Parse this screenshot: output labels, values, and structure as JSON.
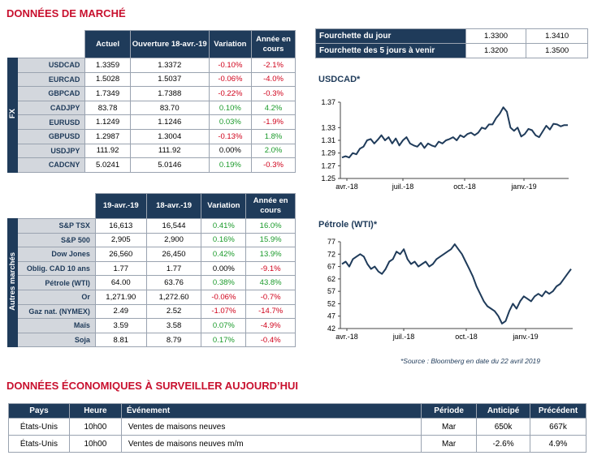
{
  "titles": {
    "market": "DONNÉES DE MARCHÉ",
    "econ": "DONNÉES ÉCONOMIQUES À SURVEILLER AUJOURD’HUI"
  },
  "fx": {
    "side": "FX",
    "headers": [
      "Actuel",
      "Ouverture 18-avr.-19",
      "Variation",
      "Année en cours"
    ],
    "rows": [
      {
        "name": "USDCAD",
        "cur": "1.3359",
        "open": "1.3372",
        "var": "-0.10%",
        "ytd": "-2.1%",
        "vs": "neg",
        "ys": "neg"
      },
      {
        "name": "EURCAD",
        "cur": "1.5028",
        "open": "1.5037",
        "var": "-0.06%",
        "ytd": "-4.0%",
        "vs": "neg",
        "ys": "neg"
      },
      {
        "name": "GBPCAD",
        "cur": "1.7349",
        "open": "1.7388",
        "var": "-0.22%",
        "ytd": "-0.3%",
        "vs": "neg",
        "ys": "neg"
      },
      {
        "name": "CADJPY",
        "cur": "83.78",
        "open": "83.70",
        "var": "0.10%",
        "ytd": "4.2%",
        "vs": "pos",
        "ys": "pos"
      },
      {
        "name": "EURUSD",
        "cur": "1.1249",
        "open": "1.1246",
        "var": "0.03%",
        "ytd": "-1.9%",
        "vs": "pos",
        "ys": "neg"
      },
      {
        "name": "GBPUSD",
        "cur": "1.2987",
        "open": "1.3004",
        "var": "-0.13%",
        "ytd": "1.8%",
        "vs": "neg",
        "ys": "pos"
      },
      {
        "name": "USDJPY",
        "cur": "111.92",
        "open": "111.92",
        "var": "0.00%",
        "ytd": "2.0%",
        "vs": "",
        "ys": "pos"
      },
      {
        "name": "CADCNY",
        "cur": "5.0241",
        "open": "5.0146",
        "var": "0.19%",
        "ytd": "-0.3%",
        "vs": "pos",
        "ys": "neg"
      }
    ]
  },
  "markets": {
    "side": "Autres marchés",
    "headers": [
      "19-avr.-19",
      "18-avr.-19",
      "Variation",
      "Année en cours"
    ],
    "rows": [
      {
        "name": "S&P TSX",
        "cur": "16,613",
        "open": "16,544",
        "var": "0.41%",
        "ytd": "16.0%",
        "vs": "pos",
        "ys": "pos"
      },
      {
        "name": "S&P 500",
        "cur": "2,905",
        "open": "2,900",
        "var": "0.16%",
        "ytd": "15.9%",
        "vs": "pos",
        "ys": "pos"
      },
      {
        "name": "Dow Jones",
        "cur": "26,560",
        "open": "26,450",
        "var": "0.42%",
        "ytd": "13.9%",
        "vs": "pos",
        "ys": "pos"
      },
      {
        "name": "Oblig. CAD 10 ans",
        "cur": "1.77",
        "open": "1.77",
        "var": "0.00%",
        "ytd": "-9.1%",
        "vs": "",
        "ys": "neg"
      },
      {
        "name": "Pétrole (WTI)",
        "cur": "64.00",
        "open": "63.76",
        "var": "0.38%",
        "ytd": "43.8%",
        "vs": "pos",
        "ys": "pos"
      },
      {
        "name": "Or",
        "cur": "1,271.90",
        "open": "1,272.60",
        "var": "-0.06%",
        "ytd": "-0.7%",
        "vs": "neg",
        "ys": "neg"
      },
      {
        "name": "Gaz nat. (NYMEX)",
        "cur": "2.49",
        "open": "2.52",
        "var": "-1.07%",
        "ytd": "-14.7%",
        "vs": "neg",
        "ys": "neg"
      },
      {
        "name": "Maïs",
        "cur": "3.59",
        "open": "3.58",
        "var": "0.07%",
        "ytd": "-4.9%",
        "vs": "pos",
        "ys": "neg"
      },
      {
        "name": "Soja",
        "cur": "8.81",
        "open": "8.79",
        "var": "0.17%",
        "ytd": "-0.4%",
        "vs": "pos",
        "ys": "neg"
      }
    ]
  },
  "ranges": [
    {
      "label": "Fourchette du jour",
      "low": "1.3300",
      "high": "1.3410"
    },
    {
      "label": "Fourchette des 5 jours à venir",
      "low": "1.3200",
      "high": "1.3500"
    }
  ],
  "chart_data": [
    {
      "type": "line",
      "title": "USDCAD*",
      "ylim": [
        1.25,
        1.37
      ],
      "yticks": [
        "1.37",
        "1.33",
        "1.31",
        "1.29",
        "1.27",
        "1.25"
      ],
      "xticks": [
        "avr.-18",
        "juil.-18",
        "oct.-18",
        "janv.-19"
      ],
      "x": [
        0,
        4,
        8,
        12,
        16,
        20,
        24,
        28,
        32,
        36,
        40,
        44,
        48,
        52,
        56,
        60,
        64,
        68,
        72,
        76,
        80,
        84,
        88,
        92,
        96,
        100,
        104,
        108,
        112,
        116,
        120,
        124,
        128,
        132,
        136,
        140,
        144,
        148,
        152,
        156,
        160,
        164,
        168,
        172,
        176,
        180,
        184,
        188,
        192,
        196,
        200,
        204,
        208,
        212,
        216,
        220,
        224,
        228,
        232,
        236,
        240,
        244,
        248,
        252
      ],
      "values": [
        1.283,
        1.285,
        1.283,
        1.29,
        1.288,
        1.297,
        1.3,
        1.31,
        1.312,
        1.305,
        1.311,
        1.318,
        1.31,
        1.315,
        1.305,
        1.313,
        1.302,
        1.31,
        1.315,
        1.305,
        1.302,
        1.3,
        1.306,
        1.298,
        1.305,
        1.302,
        1.3,
        1.308,
        1.305,
        1.31,
        1.312,
        1.315,
        1.31,
        1.318,
        1.315,
        1.32,
        1.322,
        1.318,
        1.322,
        1.33,
        1.328,
        1.335,
        1.335,
        1.345,
        1.352,
        1.362,
        1.355,
        1.33,
        1.325,
        1.33,
        1.316,
        1.32,
        1.328,
        1.326,
        1.318,
        1.315,
        1.324,
        1.333,
        1.327,
        1.336,
        1.335,
        1.332,
        1.334,
        1.334
      ]
    },
    {
      "type": "line",
      "title": "Pétrole (WTI)*",
      "ylim": [
        42,
        77
      ],
      "yticks": [
        "77",
        "72",
        "67",
        "62",
        "57",
        "52",
        "47",
        "42"
      ],
      "xticks": [
        "avr.-18",
        "juil.-18",
        "oct.-18",
        "janv.-19"
      ],
      "x": [
        0,
        4,
        8,
        12,
        16,
        20,
        24,
        28,
        32,
        36,
        40,
        44,
        48,
        52,
        56,
        60,
        64,
        68,
        72,
        76,
        80,
        84,
        88,
        92,
        96,
        100,
        104,
        108,
        112,
        116,
        120,
        124,
        128,
        132,
        136,
        140,
        144,
        148,
        152,
        156,
        160,
        164,
        168,
        172,
        176,
        180,
        184,
        188,
        192,
        196,
        200,
        204,
        208,
        212,
        216,
        220,
        224,
        228,
        232,
        236,
        240,
        244,
        248,
        252
      ],
      "values": [
        68,
        69,
        67,
        70,
        71,
        72,
        71,
        68,
        66,
        67,
        65,
        64,
        66,
        69,
        70,
        73,
        72,
        74,
        70,
        68,
        69,
        67,
        68,
        69,
        67,
        68,
        70,
        71,
        72,
        73,
        74,
        76,
        74,
        72,
        69,
        66,
        63,
        59,
        56,
        53,
        51,
        50,
        49,
        47,
        44,
        45,
        49,
        52,
        50,
        53,
        55,
        54,
        53,
        55,
        56,
        55,
        57,
        56,
        57,
        59,
        60,
        62,
        64,
        66
      ]
    }
  ],
  "source": "*Source : Bloomberg en date du  22 avril 2019",
  "econ": {
    "headers": [
      "Pays",
      "Heure",
      "Événement",
      "Période",
      "Anticipé",
      "Précédent"
    ],
    "rows": [
      [
        "États-Unis",
        "10h00",
        "Ventes de maisons neuves",
        "Mar",
        "650k",
        "667k"
      ],
      [
        "États-Unis",
        "10h00",
        "Ventes de maisons neuves m/m",
        "Mar",
        "-2.6%",
        "4.9%"
      ]
    ]
  }
}
